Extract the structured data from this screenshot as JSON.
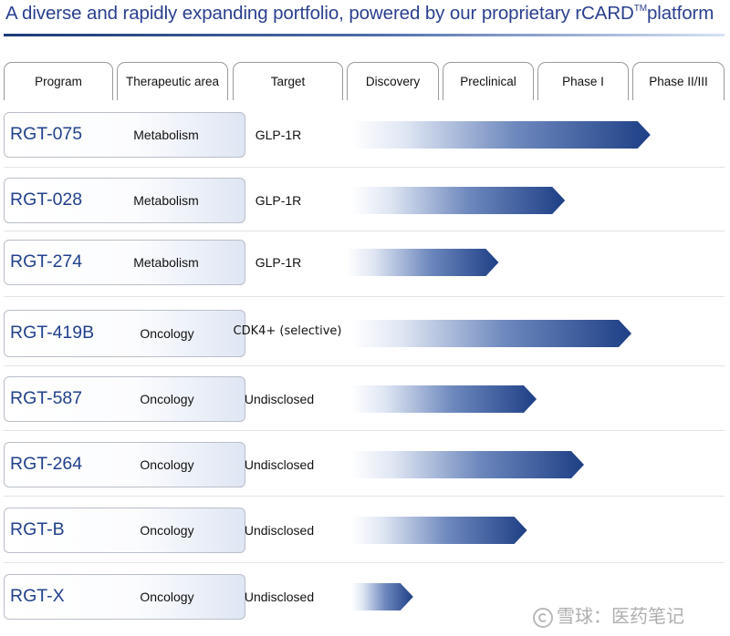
{
  "title": "A diverse and rapidly expanding portfolio, powered by our proprietary rCARD",
  "title_tm": "TM",
  "title_end": "platform",
  "columns": [
    "Program",
    "Therapeutic area",
    "Target",
    "Discovery",
    "Preclinical",
    "Phase I",
    "Phase II/III"
  ],
  "colors": {
    "title": "#2a3f8f",
    "program_text": "#22418c",
    "bar_dark": "#1e3f86",
    "bar_light": "#ffffff"
  },
  "watermark": "雪球：医药笔记",
  "chart_data": {
    "type": "bar",
    "orientation": "horizontal",
    "title": "A diverse and rapidly expanding portfolio, powered by our proprietary rCARD™ platform",
    "stage_axis": [
      "Discovery",
      "Preclinical",
      "Phase I",
      "Phase II/III"
    ],
    "unit": "development stage progress (stage columns, 0 = start of Discovery)",
    "xlim": [
      0,
      4
    ],
    "categories": [
      "RGT-075",
      "RGT-028",
      "RGT-274",
      "RGT-419B",
      "RGT-587",
      "RGT-264",
      "RGT-B",
      "RGT-X"
    ],
    "series": [
      {
        "name": "Development stage",
        "values": [
          3.2,
          2.3,
          1.6,
          3.0,
          2.0,
          2.5,
          1.9,
          0.7
        ]
      }
    ],
    "rows": [
      {
        "program": "RGT-075",
        "area": "Metabolism",
        "target": "GLP-1R",
        "start": 0.05,
        "end": 3.2
      },
      {
        "program": "RGT-028",
        "area": "Metabolism",
        "target": "GLP-1R",
        "start": 0.05,
        "end": 2.3
      },
      {
        "program": "RGT-274",
        "area": "Metabolism",
        "target": "GLP-1R",
        "start": 0.0,
        "end": 1.6
      },
      {
        "program": "RGT-419B",
        "area": "Oncology",
        "target": "CDK4+ (selective)",
        "start": 0.05,
        "end": 3.0
      },
      {
        "program": "RGT-587",
        "area": "Oncology",
        "target": "Undisclosed",
        "start": 0.05,
        "end": 2.0
      },
      {
        "program": "RGT-264",
        "area": "Oncology",
        "target": "Undisclosed",
        "start": 0.05,
        "end": 2.5
      },
      {
        "program": "RGT-B",
        "area": "Oncology",
        "target": "Undisclosed",
        "start": 0.05,
        "end": 1.9
      },
      {
        "program": "RGT-X",
        "area": "Oncology",
        "target": "Undisclosed",
        "start": 0.05,
        "end": 0.7
      }
    ]
  }
}
